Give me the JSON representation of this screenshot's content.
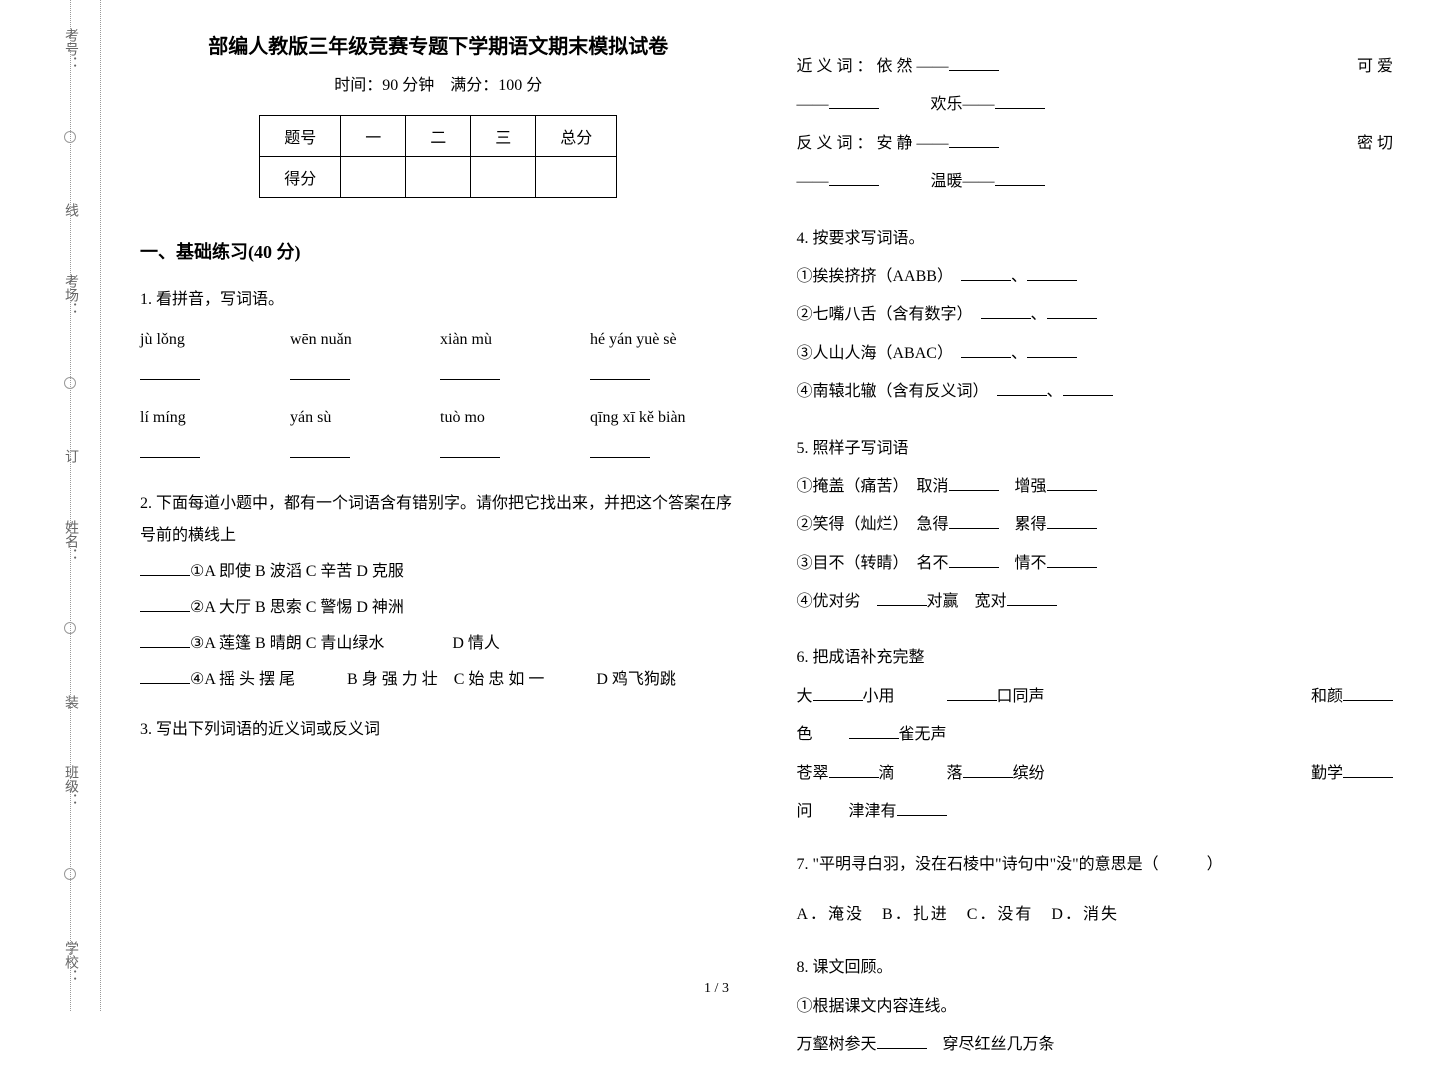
{
  "binding": {
    "labels": [
      "考号：",
      "考场：",
      "姓名：",
      "班级：",
      "学校："
    ],
    "seam_chars": [
      "装",
      "订",
      "线"
    ]
  },
  "header": {
    "title": "部编人教版三年级竞赛专题下学期语文期末模拟试卷",
    "time_label": "时间：90 分钟　满分：100 分"
  },
  "score_table": {
    "row1": [
      "题号",
      "一",
      "二",
      "三",
      "总分"
    ],
    "row2_label": "得分"
  },
  "section1_header": "一、基础练习(40 分)",
  "q1": {
    "stem": "1. 看拼音，写词语。",
    "pinyin_row1": [
      "jù lǒng",
      "wēn nuǎn",
      "xiàn mù",
      "hé yán yuè sè"
    ],
    "pinyin_row2": [
      "lí míng",
      "yán sù",
      "tuò mo",
      "qīng xī kě biàn"
    ]
  },
  "q2": {
    "stem": "2. 下面每道小题中，都有一个词语含有错别字。请你把它找出来，并把这个答案在序号前的横线上",
    "lines": [
      "①A 即使  B 波滔  C 辛苦  D 克服",
      "②A 大厅  B 思索  C 警惕  D 神洲",
      "③A 莲篷  B 晴朗  C 青山绿水　　　　 D 情人",
      "④A 摇 头 摆 尾　　　 B 身 强 力 壮　C 始 忠 如 一　　　 D 鸡飞狗跳"
    ]
  },
  "q3": {
    "stem": "3. 写出下列词语的近义词或反义词"
  },
  "q3_right": {
    "syn_label": "近 义 词 ： 依 然 ——",
    "syn_tail1": "可 爱",
    "syn_line2_prefix": "——",
    "syn_line2_mid": "欢乐——",
    "ant_label": "反 义 词 ： 安 静 ——",
    "ant_tail1": "密 切",
    "ant_line2_prefix": "——",
    "ant_line2_mid": "温暖——"
  },
  "q4": {
    "stem": "4. 按要求写词语。",
    "lines": [
      "①挨挨挤挤（AABB）",
      "②七嘴八舌（含有数字）",
      "③人山人海（ABAC）",
      "④南辕北辙（含有反义词）"
    ]
  },
  "q5": {
    "stem": "5. 照样子写词语",
    "lines": [
      {
        "pre": "①掩盖（痛苦）　取消",
        "mid": "　增强"
      },
      {
        "pre": "②笑得（灿烂）　急得",
        "mid": "　累得"
      },
      {
        "pre": "③目不（转睛）　名不",
        "mid": "　情不"
      },
      {
        "pre": "④优对劣　",
        "mid": "对赢　宽对"
      }
    ]
  },
  "q6": {
    "stem": "6. 把成语补充完整",
    "l1a": "大",
    "l1b": "小用",
    "l1c": "口同声",
    "l1d": "和颜",
    "l2a": "色",
    "l2b": "雀无声",
    "l3a": "苍翠",
    "l3b": "滴",
    "l3c": "落",
    "l3d": "缤纷",
    "l3e": "勤学",
    "l4a": "问",
    "l4b": "津津有"
  },
  "q7": {
    "stem": "7. \"平明寻白羽，没在石棱中\"诗句中\"没\"的意思是（　　　）",
    "options": "A．淹没　B．扎进　C．没有　D．消失"
  },
  "q8": {
    "stem": "8. 课文回顾。",
    "l1": "①根据课文内容连线。",
    "l2a": "万壑树参天",
    "l2b": "　穿尽红丝几万条"
  },
  "page_number": "1 / 3"
}
